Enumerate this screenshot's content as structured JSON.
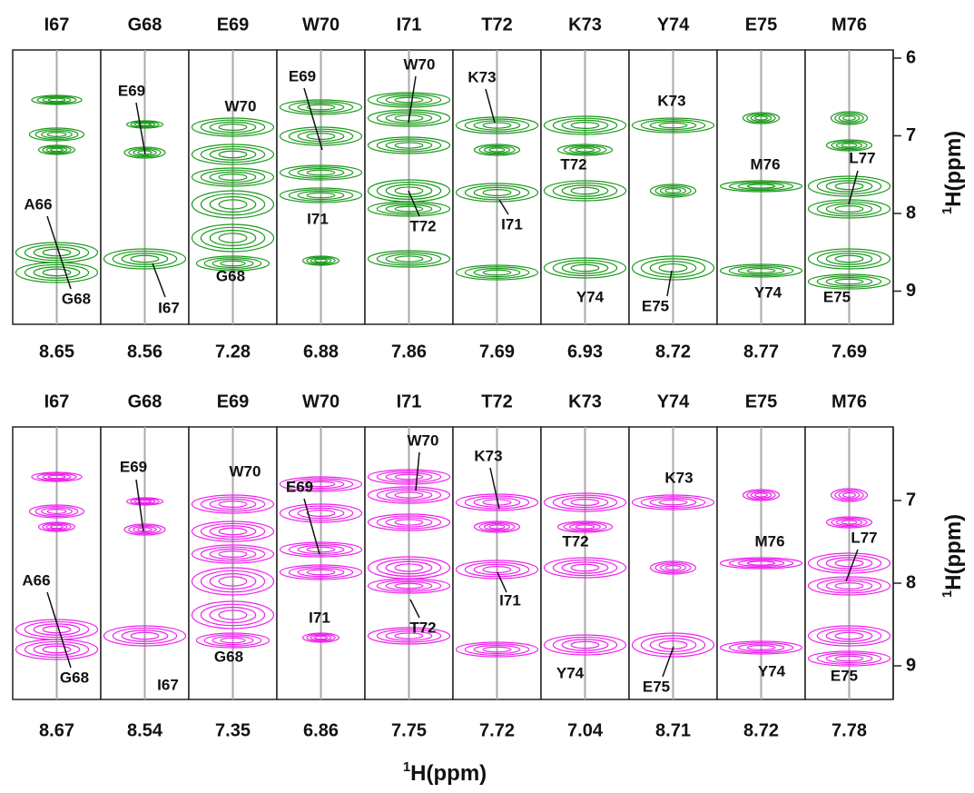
{
  "panels": [
    {
      "strips": [
        {
          "top": "I67",
          "bottom": "8.65",
          "labels": [
            "A66",
            "G68"
          ]
        },
        {
          "top": "G68",
          "bottom": "8.56",
          "labels": [
            "E69",
            "I67"
          ]
        },
        {
          "top": "E69",
          "bottom": "7.28",
          "labels": [
            "W70",
            "G68"
          ]
        },
        {
          "top": "W70",
          "bottom": "6.88",
          "labels": [
            "E69",
            "I71"
          ]
        },
        {
          "top": "I71",
          "bottom": "7.86",
          "labels": [
            "W70",
            "T72"
          ]
        },
        {
          "top": "T72",
          "bottom": "7.69",
          "labels": [
            "K73",
            "I71"
          ]
        },
        {
          "top": "K73",
          "bottom": "6.93",
          "labels": [
            "T72",
            "Y74"
          ]
        },
        {
          "top": "Y74",
          "bottom": "8.72",
          "labels": [
            "K73",
            "E75"
          ]
        },
        {
          "top": "E75",
          "bottom": "8.77",
          "labels": [
            "M76",
            "Y74"
          ]
        },
        {
          "top": "M76",
          "bottom": "7.69",
          "labels": [
            "L77",
            "E75"
          ]
        }
      ],
      "axis_ticks": [
        6,
        7,
        8,
        9
      ],
      "axis_label": {
        "sup": "1",
        "text": "H(ppm)"
      }
    },
    {
      "strips": [
        {
          "top": "I67",
          "bottom": "8.67",
          "labels": [
            "A66",
            "G68"
          ]
        },
        {
          "top": "G68",
          "bottom": "8.54",
          "labels": [
            "E69",
            "I67"
          ]
        },
        {
          "top": "E69",
          "bottom": "7.35",
          "labels": [
            "W70",
            "G68"
          ]
        },
        {
          "top": "W70",
          "bottom": "6.86",
          "labels": [
            "E69",
            "I71"
          ]
        },
        {
          "top": "I71",
          "bottom": "7.75",
          "labels": [
            "W70",
            "T72"
          ]
        },
        {
          "top": "T72",
          "bottom": "7.72",
          "labels": [
            "K73",
            "I71"
          ]
        },
        {
          "top": "K73",
          "bottom": "7.04",
          "labels": [
            "T72",
            "Y74"
          ]
        },
        {
          "top": "Y74",
          "bottom": "8.71",
          "labels": [
            "K73",
            "E75"
          ]
        },
        {
          "top": "E75",
          "bottom": "8.72",
          "labels": [
            "M76",
            "Y74"
          ]
        },
        {
          "top": "M76",
          "bottom": "7.78",
          "labels": [
            "L77",
            "E75"
          ]
        }
      ],
      "axis_ticks": [
        7,
        8,
        9
      ],
      "axis_label": {
        "sup": "1",
        "text": "H(ppm)"
      }
    }
  ],
  "x_axis_label": {
    "sup": "1",
    "text": "H(ppm)"
  }
}
